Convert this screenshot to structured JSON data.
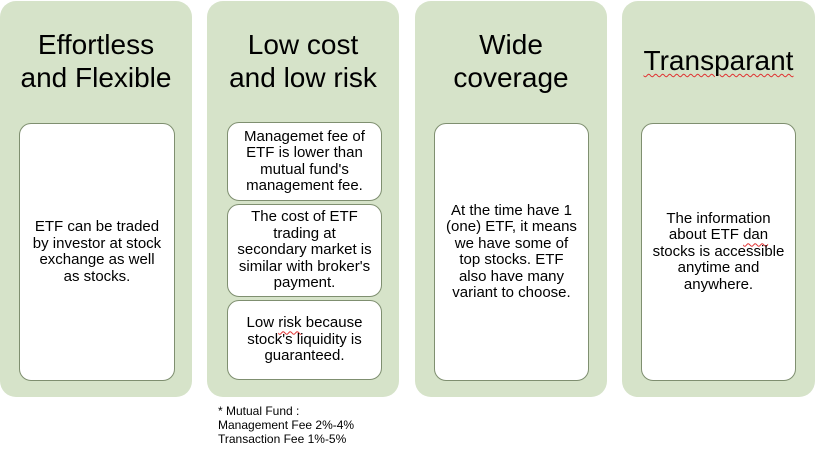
{
  "panels": [
    {
      "title_lines": [
        "Effortless",
        "and Flexible"
      ],
      "cards": [
        {
          "lines": [
            "ETF can be traded",
            "by investor at stock",
            "exchange as well",
            "as stocks."
          ]
        }
      ]
    },
    {
      "title_lines": [
        "Low cost",
        "and low risk"
      ],
      "cards": [
        {
          "lines": [
            "Managemet fee of",
            "ETF is lower than",
            "mutual fund's",
            "management fee."
          ]
        },
        {
          "lines": [
            "The cost of ETF",
            "trading at",
            "secondary market is",
            "similar with broker's",
            "payment."
          ]
        },
        {
          "line1_pre": "Low ",
          "line1_err": "risk",
          "line1_post": " because",
          "lines_rest": [
            "stock's liquidity is",
            "guaranteed."
          ]
        }
      ]
    },
    {
      "title_lines": [
        "Wide",
        "coverage"
      ],
      "cards": [
        {
          "lines": [
            "At the time have 1",
            "(one) ETF, it means",
            "we have some of",
            "top stocks. ETF",
            "also have many",
            "variant to choose."
          ]
        }
      ]
    },
    {
      "title": "Transparant",
      "cards": [
        {
          "line1": "The information",
          "line2_pre": "about ETF ",
          "line2_err": "dan",
          "line3": "stocks is accessible",
          "line4": "anytime and",
          "line5": "anywhere."
        }
      ]
    }
  ],
  "footnote": {
    "heading": "* Mutual Fund :",
    "line1": "Management Fee 2%-4%",
    "line2": "Transaction Fee 1%-5%"
  },
  "colors": {
    "panel_fill": "#d6e3c9",
    "card_fill": "#ffffff",
    "card_border": "#7f8f70",
    "spellcheck_underline": "#e03030"
  }
}
